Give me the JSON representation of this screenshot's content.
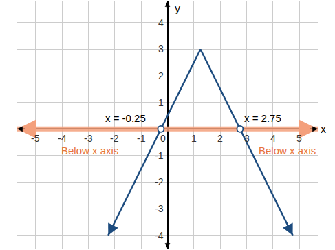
{
  "chart_data": {
    "type": "line",
    "xlabel": "x",
    "ylabel": "y",
    "xlim": [
      -5.7,
      5.7
    ],
    "ylim": [
      -4.5,
      4.8
    ],
    "xticks": [
      -5,
      -4,
      -3,
      -2,
      -1,
      0,
      1,
      2,
      3,
      4,
      5
    ],
    "yticks": [
      -4,
      -3,
      -2,
      -1,
      1,
      2,
      3,
      4
    ],
    "grid": true,
    "series": [
      {
        "x": [
          -5.7,
          5.7
        ],
        "values": [
          0,
          0
        ],
        "color": "#f4a07c",
        "line_style": "band",
        "marker": "arrow"
      },
      {
        "x": [
          -2.25,
          1.25,
          4.75
        ],
        "values": [
          -4,
          3,
          -4
        ],
        "color": "#1c4b7e",
        "line_style": "solid",
        "marker": "arrow"
      },
      {
        "x": [
          -0.25,
          2.75
        ],
        "values": [
          0,
          0
        ],
        "color": "#1c4b7e",
        "line_style": "none",
        "marker": "open circle"
      }
    ],
    "annotations": [
      {
        "text": "x = -0.25",
        "x": -1.6,
        "y": 0.42,
        "color": "#000000"
      },
      {
        "text": "x = 2.75",
        "x": 3.6,
        "y": 0.42,
        "color": "#000000"
      },
      {
        "text": "Below x axis",
        "x": -2.95,
        "y": -0.8,
        "color": "#e8743b"
      },
      {
        "text": "Below x axis",
        "x": 4.55,
        "y": -0.8,
        "color": "#e8743b"
      }
    ]
  }
}
